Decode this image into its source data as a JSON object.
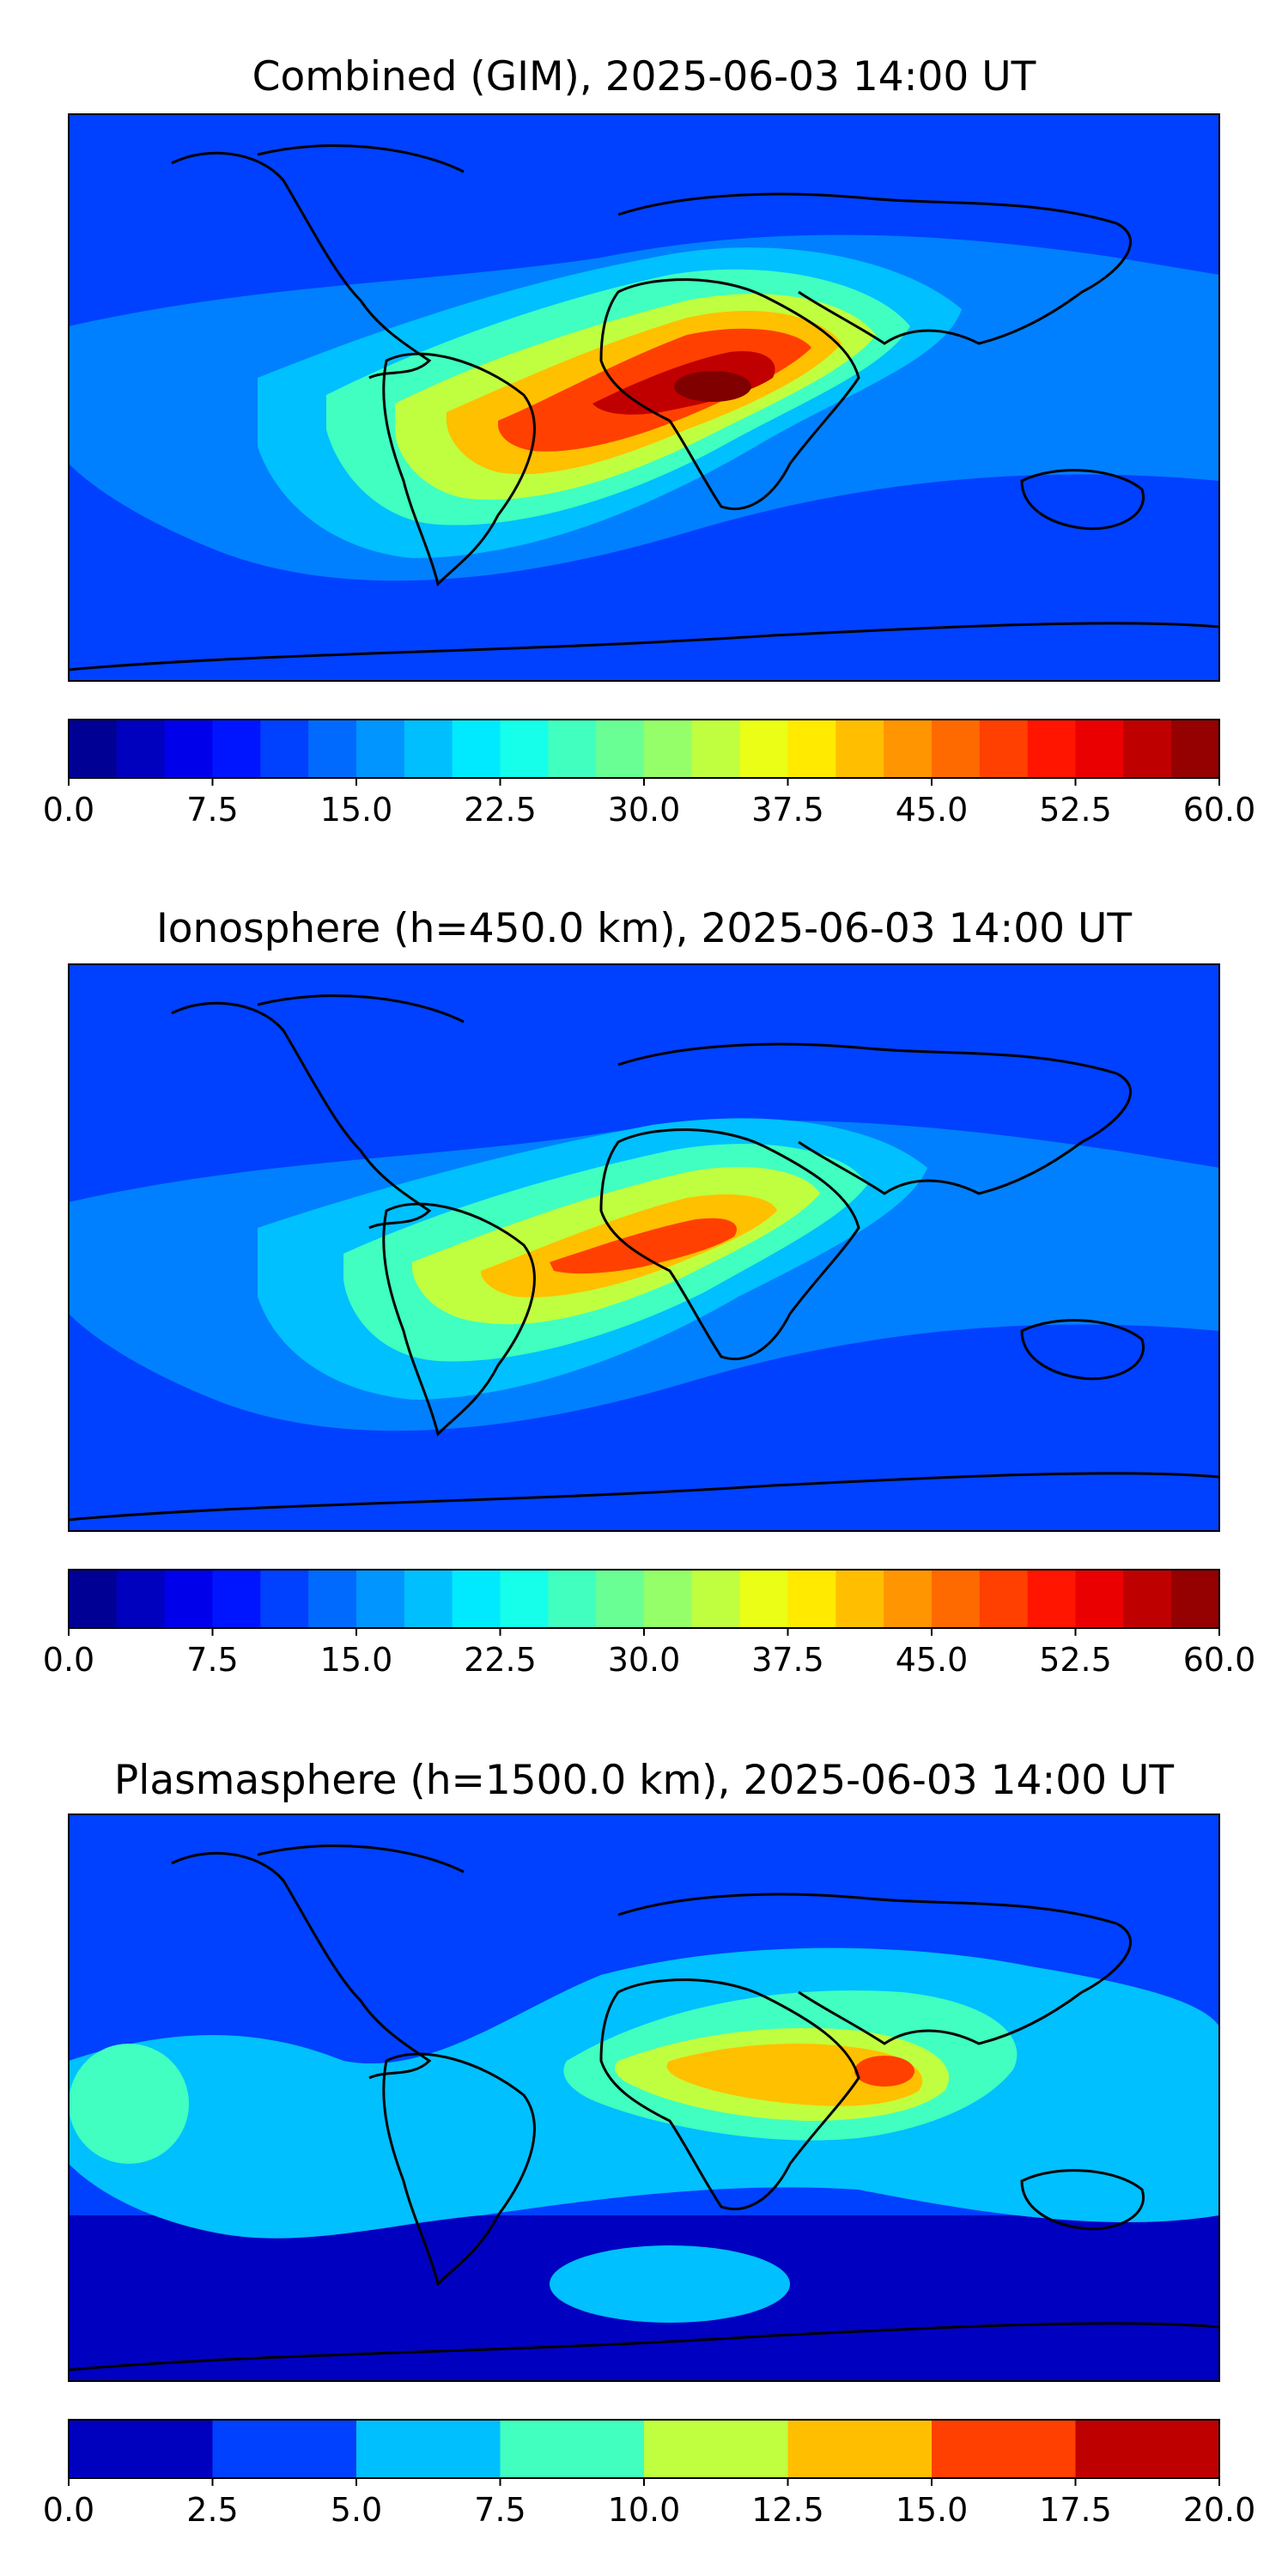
{
  "chart_data": [
    {
      "type": "heatmap",
      "title": "Combined (GIM), 2025-06-03 14:00 UT",
      "xlabel": "",
      "ylabel": "",
      "projection": "world map with coastlines",
      "xlim": [
        -180,
        180
      ],
      "ylim": [
        -90,
        90
      ],
      "grid": false,
      "colormap": "jet",
      "colorbar": {
        "orientation": "horizontal",
        "placement": "below",
        "range": [
          0,
          60
        ],
        "levels": 24,
        "step": 2.5,
        "tick_labels": [
          "0.0",
          "7.5",
          "15.0",
          "22.5",
          "30.0",
          "37.5",
          "45.0",
          "52.5",
          "60.0"
        ]
      },
      "features": [
        {
          "description": "equatorial anomaly crest over Africa",
          "lon": 20,
          "lat": 4,
          "value": 57
        },
        {
          "description": "crest over equatorial Atlantic / Brazil",
          "lon": -35,
          "lat": -5,
          "value": 45
        },
        {
          "description": "background polar regions",
          "value": 7
        }
      ]
    },
    {
      "type": "heatmap",
      "title": "Ionosphere  (h=450.0 km), 2025-06-03 14:00 UT",
      "xlabel": "",
      "ylabel": "",
      "projection": "world map with coastlines",
      "xlim": [
        -180,
        180
      ],
      "ylim": [
        -90,
        90
      ],
      "grid": false,
      "colormap": "jet",
      "colorbar": {
        "orientation": "horizontal",
        "placement": "below",
        "range": [
          0,
          60
        ],
        "levels": 24,
        "step": 2.5,
        "tick_labels": [
          "0.0",
          "7.5",
          "15.0",
          "22.5",
          "30.0",
          "37.5",
          "45.0",
          "52.5",
          "60.0"
        ]
      },
      "features": [
        {
          "description": "equatorial anomaly crest over Africa",
          "lon": 5,
          "lat": 0,
          "value": 48
        },
        {
          "description": "crest over equatorial Atlantic / Brazil",
          "lon": -40,
          "lat": -8,
          "value": 38
        },
        {
          "description": "background polar regions",
          "value": 6
        }
      ]
    },
    {
      "type": "heatmap",
      "title": "Plasmasphere (h=1500.0 km), 2025-06-03 14:00 UT",
      "xlabel": "",
      "ylabel": "",
      "projection": "world map with coastlines",
      "xlim": [
        -180,
        180
      ],
      "ylim": [
        -90,
        90
      ],
      "grid": false,
      "colormap": "jet",
      "colorbar": {
        "orientation": "horizontal",
        "placement": "below",
        "range": [
          0,
          20
        ],
        "levels": 8,
        "step": 2.5,
        "tick_labels": [
          "0.0",
          "2.5",
          "5.0",
          "7.5",
          "10.0",
          "12.5",
          "15.0",
          "17.5",
          "20.0"
        ]
      },
      "features": [
        {
          "description": "maximum over Arabian Sea / India",
          "lon": 65,
          "lat": 18,
          "value": 16
        },
        {
          "description": "high band over Middle East and North Africa",
          "lon": 40,
          "lat": 20,
          "value": 13
        },
        {
          "description": "background polar regions",
          "value": 3
        }
      ]
    }
  ]
}
